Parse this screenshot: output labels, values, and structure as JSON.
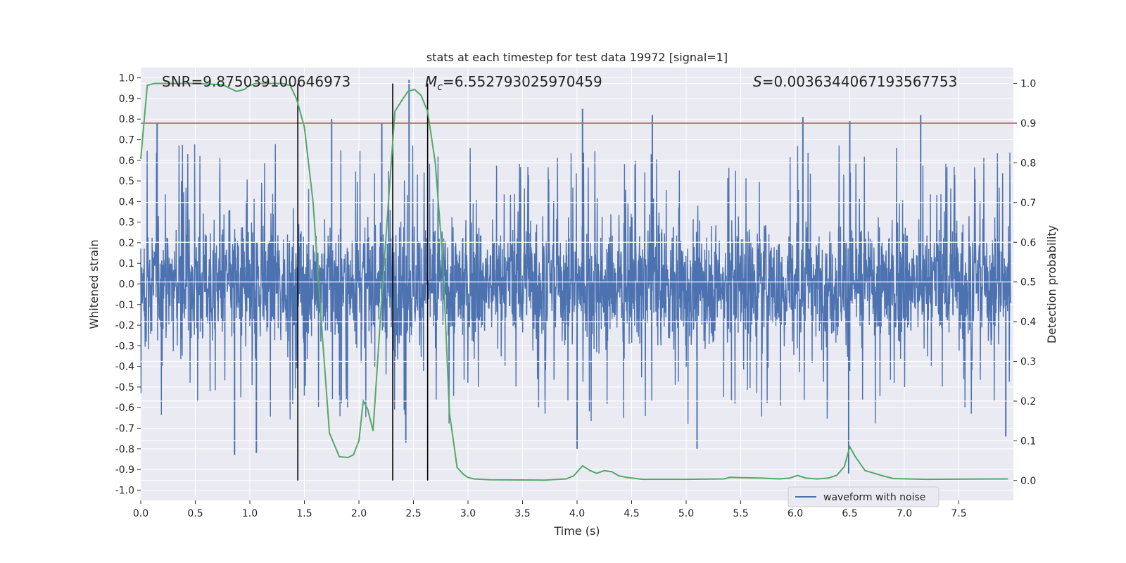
{
  "chart_data": {
    "type": "line",
    "title": "stats at each timestep for test data 19972 [signal=1]",
    "xlabel": "Time (s)",
    "ylabel_left": "Whitened strain",
    "ylabel_right": "Detection probability",
    "xlim": [
      0.0,
      8.0
    ],
    "ylim_left": [
      -1.05,
      1.05
    ],
    "ylim_right": [
      -0.05,
      1.04
    ],
    "x_ticks": [
      "0.0",
      "0.5",
      "1.0",
      "1.5",
      "2.0",
      "2.5",
      "3.0",
      "3.5",
      "4.0",
      "4.5",
      "5.0",
      "5.5",
      "6.0",
      "6.5",
      "7.0",
      "7.5"
    ],
    "y_left_ticks": [
      "1.0",
      "0.9",
      "0.8",
      "0.7",
      "0.6",
      "0.5",
      "0.4",
      "0.3",
      "0.2",
      "0.1",
      "0.0",
      "-0.1",
      "-0.2",
      "-0.3",
      "-0.4",
      "-0.5",
      "-0.6",
      "-0.7",
      "-0.8",
      "-0.9",
      "-1.0"
    ],
    "y_right_ticks": [
      "1.0",
      "0.9",
      "0.8",
      "0.7",
      "0.6",
      "0.5",
      "0.4",
      "0.3",
      "0.2",
      "0.1",
      "0.0"
    ],
    "grid": true,
    "legend_position": "lower-right",
    "annotations": {
      "snr": "SNR=9.875039100646973",
      "mc": "=6.552793025970459",
      "s": "=0.0036344067193567753"
    },
    "threshold_right": 0.9,
    "vlines_x": [
      1.44,
      2.31,
      2.63
    ],
    "series": [
      {
        "name": "waveform with noise",
        "axis": "left",
        "color": "#4c72b0",
        "kind": "noisy_strain",
        "envelope_typical": [
          -0.42,
          0.42
        ],
        "peak_values": [
          {
            "x": 0.15,
            "y": 0.78
          },
          {
            "x": 0.86,
            "y": -0.83
          },
          {
            "x": 1.06,
            "y": -0.82
          },
          {
            "x": 1.75,
            "y": 0.8
          },
          {
            "x": 2.21,
            "y": 0.78
          },
          {
            "x": 2.46,
            "y": 0.99
          },
          {
            "x": 2.43,
            "y": -0.77
          },
          {
            "x": 4.05,
            "y": 0.85
          },
          {
            "x": 4.0,
            "y": -0.8
          },
          {
            "x": 4.69,
            "y": 0.82
          },
          {
            "x": 5.1,
            "y": -0.8
          },
          {
            "x": 6.07,
            "y": 0.81
          },
          {
            "x": 6.5,
            "y": 0.79
          },
          {
            "x": 6.49,
            "y": -0.92
          },
          {
            "x": 7.15,
            "y": 0.82
          },
          {
            "x": 7.93,
            "y": -0.74
          }
        ]
      },
      {
        "name": "",
        "axis": "right",
        "color": "#55a868",
        "x": [
          0.0,
          0.06,
          0.12,
          0.2,
          0.5,
          0.75,
          0.8,
          0.88,
          0.95,
          1.0,
          1.05,
          1.3,
          1.37,
          1.43,
          1.5,
          1.58,
          1.65,
          1.73,
          1.82,
          1.9,
          1.95,
          2.0,
          2.04,
          2.08,
          2.13,
          2.2,
          2.27,
          2.33,
          2.4,
          2.45,
          2.51,
          2.57,
          2.63,
          2.7,
          2.77,
          2.83,
          2.9,
          2.96,
          3.0,
          3.05,
          3.2,
          3.7,
          3.9,
          3.97,
          4.05,
          4.12,
          4.18,
          4.25,
          4.32,
          4.38,
          4.45,
          4.6,
          5.0,
          5.35,
          5.4,
          5.5,
          5.7,
          5.85,
          5.95,
          6.02,
          6.1,
          6.2,
          6.3,
          6.38,
          6.45,
          6.5,
          6.55,
          6.64,
          6.8,
          6.9,
          7.2,
          7.95
        ],
        "y": [
          0.81,
          0.995,
          1.0,
          1.0,
          1.0,
          0.997,
          0.99,
          0.98,
          0.985,
          0.995,
          1.0,
          1.0,
          0.995,
          0.96,
          0.89,
          0.7,
          0.42,
          0.12,
          0.06,
          0.058,
          0.065,
          0.1,
          0.2,
          0.18,
          0.125,
          0.42,
          0.7,
          0.93,
          0.96,
          0.98,
          0.985,
          0.97,
          0.93,
          0.8,
          0.55,
          0.17,
          0.033,
          0.015,
          0.008,
          0.004,
          0.002,
          0.001,
          0.004,
          0.012,
          0.037,
          0.025,
          0.018,
          0.025,
          0.022,
          0.012,
          0.008,
          0.003,
          0.003,
          0.004,
          0.008,
          0.007,
          0.006,
          0.004,
          0.006,
          0.013,
          0.006,
          0.004,
          0.006,
          0.013,
          0.035,
          0.085,
          0.06,
          0.025,
          0.012,
          0.005,
          0.003,
          0.004
        ]
      }
    ]
  }
}
